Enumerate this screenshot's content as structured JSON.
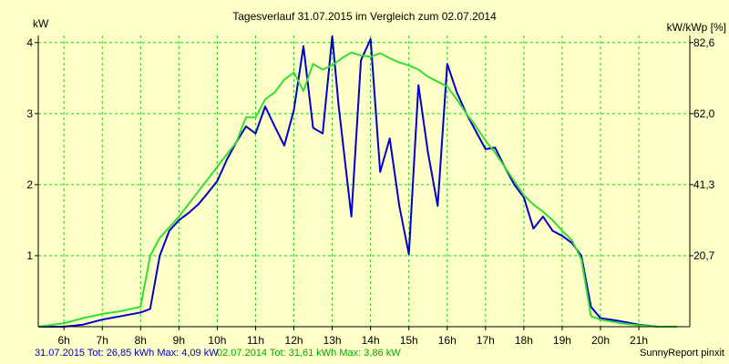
{
  "chart_data": {
    "type": "line",
    "title": "Tagesverlauf 31.07.2015 im Vergleich zum 02.07.2014",
    "ylabel_left": "kW",
    "ylabel_right": "kW/kWp [%]",
    "ylim": [
      0,
      4.1
    ],
    "yticks_left": [
      {
        "value": 1,
        "label": "1"
      },
      {
        "value": 2,
        "label": "2"
      },
      {
        "value": 3,
        "label": "3"
      },
      {
        "value": 4,
        "label": "4"
      }
    ],
    "yticks_right": [
      {
        "value": 1,
        "label": "20,7"
      },
      {
        "value": 2,
        "label": "41,3"
      },
      {
        "value": 3,
        "label": "62,0"
      },
      {
        "value": 4,
        "label": "82,6"
      }
    ],
    "xlim": [
      5.33,
      22.33
    ],
    "xticks": [
      {
        "value": 6,
        "label": "6h"
      },
      {
        "value": 7,
        "label": "7h"
      },
      {
        "value": 8,
        "label": "8h"
      },
      {
        "value": 9,
        "label": "9h"
      },
      {
        "value": 10,
        "label": "10h"
      },
      {
        "value": 11,
        "label": "11h"
      },
      {
        "value": 12,
        "label": "12h"
      },
      {
        "value": 13,
        "label": "13h"
      },
      {
        "value": 14,
        "label": "14h"
      },
      {
        "value": 15,
        "label": "15h"
      },
      {
        "value": 16,
        "label": "16h"
      },
      {
        "value": 17,
        "label": "17h"
      },
      {
        "value": 18,
        "label": "18h"
      },
      {
        "value": 19,
        "label": "19h"
      },
      {
        "value": 20,
        "label": "20h"
      },
      {
        "value": 21,
        "label": "21h"
      }
    ],
    "grid": true,
    "series": [
      {
        "color": "#0000cc",
        "x": [
          5.33,
          6.0,
          6.5,
          7.0,
          7.5,
          8.0,
          8.25,
          8.5,
          8.75,
          9.0,
          9.25,
          9.5,
          9.75,
          10.0,
          10.25,
          10.5,
          10.75,
          11.0,
          11.25,
          11.5,
          11.75,
          12.0,
          12.25,
          12.5,
          12.75,
          13.0,
          13.17,
          13.5,
          13.75,
          14.0,
          14.25,
          14.5,
          14.75,
          15.0,
          15.25,
          15.5,
          15.75,
          16.0,
          16.25,
          16.5,
          16.75,
          17.0,
          17.25,
          17.5,
          17.75,
          18.0,
          18.25,
          18.5,
          18.75,
          19.0,
          19.25,
          19.5,
          19.75,
          20.0,
          20.5,
          21.0,
          21.5
        ],
        "y": [
          0,
          0,
          0.03,
          0.1,
          0.15,
          0.2,
          0.25,
          1.0,
          1.35,
          1.5,
          1.6,
          1.72,
          1.88,
          2.05,
          2.35,
          2.6,
          2.82,
          2.72,
          3.1,
          2.82,
          2.55,
          3.05,
          3.95,
          2.8,
          2.72,
          4.09,
          3.1,
          1.55,
          3.75,
          4.05,
          2.18,
          2.65,
          1.7,
          1.02,
          3.4,
          2.45,
          1.7,
          3.7,
          3.3,
          3.0,
          2.75,
          2.5,
          2.52,
          2.25,
          2.0,
          1.82,
          1.38,
          1.55,
          1.35,
          1.28,
          1.18,
          1.0,
          0.28,
          0.12,
          0.08,
          0.03,
          0.0
        ]
      },
      {
        "color": "#33dd33",
        "x": [
          5.33,
          6.0,
          6.5,
          7.0,
          7.5,
          8.0,
          8.25,
          8.5,
          9.0,
          9.5,
          10.0,
          10.5,
          10.75,
          11.0,
          11.25,
          11.5,
          11.75,
          12.0,
          12.25,
          12.5,
          12.75,
          13.0,
          13.25,
          13.5,
          13.75,
          14.0,
          14.25,
          14.5,
          14.75,
          15.0,
          15.25,
          15.5,
          15.75,
          16.0,
          16.25,
          16.5,
          16.75,
          17.0,
          17.25,
          17.5,
          17.75,
          18.0,
          18.25,
          18.5,
          18.75,
          19.0,
          19.25,
          19.5,
          19.75,
          20.0,
          20.5,
          21.0,
          21.5,
          22.0
        ],
        "y": [
          0,
          0.05,
          0.12,
          0.18,
          0.22,
          0.28,
          1.0,
          1.25,
          1.55,
          1.9,
          2.25,
          2.6,
          2.95,
          2.95,
          3.2,
          3.3,
          3.48,
          3.58,
          3.32,
          3.7,
          3.62,
          3.68,
          3.78,
          3.86,
          3.82,
          3.8,
          3.85,
          3.78,
          3.72,
          3.68,
          3.62,
          3.52,
          3.45,
          3.38,
          3.2,
          3.0,
          2.82,
          2.62,
          2.45,
          2.25,
          2.05,
          1.85,
          1.72,
          1.62,
          1.5,
          1.35,
          1.22,
          0.95,
          0.15,
          0.1,
          0.05,
          0.02,
          0.0,
          0.0
        ]
      }
    ]
  },
  "footer": {
    "series1_text": "31.07.2015 Tot: 26,85 kWh Max: 4,09 kW",
    "series2_text": "02.07.2014 Tot: 31,61 kWh Max: 3,86 kW",
    "credit": "SunnyReport pinxit"
  }
}
